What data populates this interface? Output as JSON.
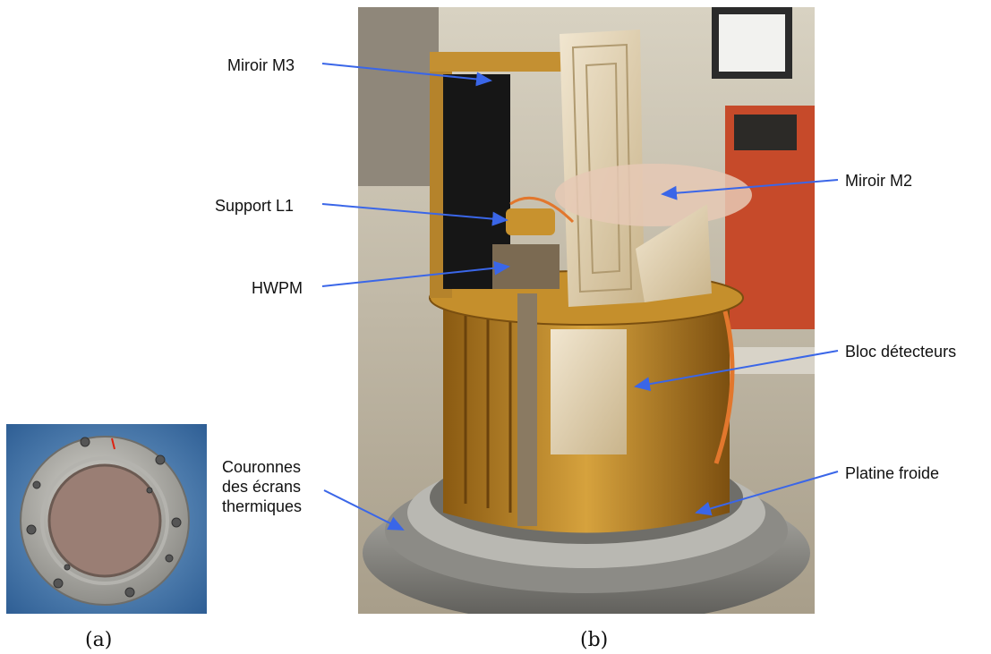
{
  "labels": {
    "miroir_m3": "Miroir M3",
    "support_l1": "Support L1",
    "hwpm": "HWPM",
    "couronnes_line1": "Couronnes",
    "couronnes_line2": "des écrans",
    "couronnes_line3": "thermiques",
    "miroir_m2": "Miroir M2",
    "bloc_detecteurs": "Bloc détecteurs",
    "platine_froide": "Platine froide"
  },
  "captions": {
    "a": "(a)",
    "b": "(b)"
  },
  "colors": {
    "arrow": "#3a66e8",
    "gold": "#c8922e",
    "aluminum": "#a7a7a3"
  }
}
